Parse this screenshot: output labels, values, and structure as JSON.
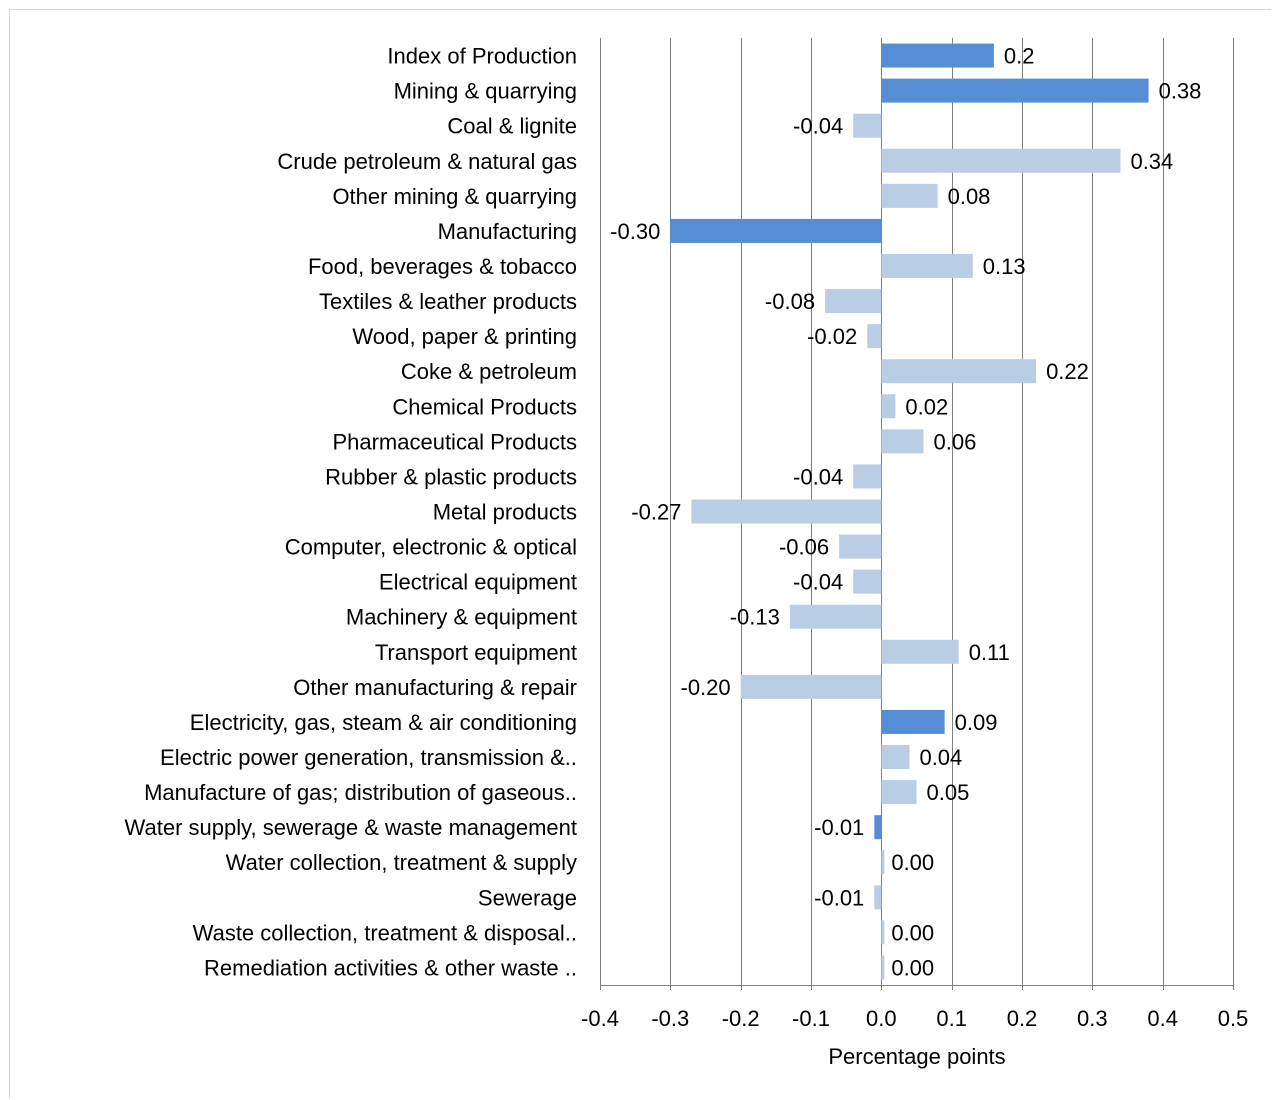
{
  "chart_data": {
    "type": "bar",
    "orientation": "horizontal",
    "title": "",
    "xlabel": "Percentage points",
    "ylabel": "",
    "xlim": [
      -0.4,
      0.5
    ],
    "xticks": [
      -0.4,
      -0.3,
      -0.2,
      -0.1,
      0.0,
      0.1,
      0.2,
      0.3,
      0.4,
      0.5
    ],
    "xtick_labels": [
      "-0.4",
      "-0.3",
      "-0.2",
      "-0.1",
      "0.0",
      "0.1",
      "0.2",
      "0.3",
      "0.4",
      "0.5"
    ],
    "grid": "vertical",
    "legend": "none",
    "colors": {
      "headline": "#558ed5",
      "component": "#b9cde5",
      "gridline": "#7f7f7f"
    },
    "categories": [
      "Index of Production",
      "Mining & quarrying",
      "Coal & lignite",
      "Crude petroleum & natural gas",
      "Other mining & quarrying",
      "Manufacturing",
      "Food, beverages & tobacco",
      "Textiles & leather products",
      "Wood, paper & printing",
      "Coke & petroleum",
      "Chemical Products",
      "Pharmaceutical  Products",
      "Rubber & plastic products",
      "Metal products",
      "Computer, electronic & optical",
      "Electrical equipment",
      "Machinery & equipment",
      "Transport equipment",
      "Other manufacturing & repair",
      "Electricity, gas, steam & air conditioning",
      "Electric power generation, transmission &..",
      "Manufacture of gas; distribution of gaseous..",
      "Water supply, sewerage & waste management",
      "Water collection, treatment & supply",
      "Sewerage",
      "Waste collection, treatment & disposal..",
      "Remediation activities & other waste .."
    ],
    "values": [
      0.16,
      0.38,
      -0.04,
      0.34,
      0.08,
      -0.3,
      0.13,
      -0.08,
      -0.02,
      0.22,
      0.02,
      0.06,
      -0.04,
      -0.27,
      -0.06,
      -0.04,
      -0.13,
      0.11,
      -0.2,
      0.09,
      0.04,
      0.05,
      -0.01,
      0.0,
      -0.01,
      0.0,
      0.0
    ],
    "data_labels": [
      "0.2",
      "0.38",
      "-0.04",
      "0.34",
      "0.08",
      "-0.30",
      "0.13",
      "-0.08",
      "-0.02",
      "0.22",
      "0.02",
      "0.06",
      "-0.04",
      "-0.27",
      "-0.06",
      "-0.04",
      "-0.13",
      "0.11",
      "-0.20",
      "0.09",
      "0.04",
      "0.05",
      "-0.01",
      "0.00",
      "-0.01",
      "0.00",
      "0.00"
    ],
    "headline": [
      true,
      true,
      false,
      false,
      false,
      true,
      false,
      false,
      false,
      false,
      false,
      false,
      false,
      false,
      false,
      false,
      false,
      false,
      false,
      true,
      false,
      false,
      true,
      false,
      false,
      false,
      false
    ]
  }
}
